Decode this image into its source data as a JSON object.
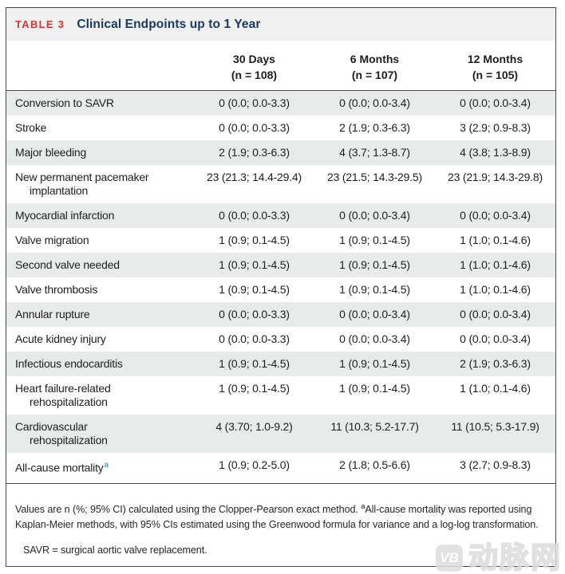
{
  "header": {
    "label": "TABLE 3",
    "title": "Clinical Endpoints up to 1 Year"
  },
  "columns": [
    {
      "title": "30 Days",
      "n": "(n = 108)"
    },
    {
      "title": "6 Months",
      "n": "(n = 107)"
    },
    {
      "title": "12 Months",
      "n": "(n = 105)"
    }
  ],
  "rows": [
    {
      "label": "Conversion to SAVR",
      "shaded": true,
      "values": [
        "0 (0.0; 0.0-3.3)",
        "0 (0.0; 0.0-3.4)",
        "0 (0.0; 0.0-3.4)"
      ]
    },
    {
      "label": "Stroke",
      "shaded": false,
      "values": [
        "0 (0.0; 0.0-3.3)",
        "2 (1.9; 0.3-6.3)",
        "3 (2.9; 0.9-8.3)"
      ]
    },
    {
      "label": "Major bleeding",
      "shaded": true,
      "values": [
        "2 (1.9; 0.3-6.3)",
        "4 (3.7; 1.3-8.7)",
        "4 (3.8; 1.3-8.9)"
      ]
    },
    {
      "label": "New permanent pacemaker",
      "label2": "implantation",
      "shaded": false,
      "values": [
        "23 (21.3; 14.4-29.4)",
        "23 (21.5; 14.3-29.5)",
        "23 (21.9; 14.3-29.8)"
      ]
    },
    {
      "label": "Myocardial infarction",
      "shaded": true,
      "values": [
        "0 (0.0; 0.0-3.3)",
        "0 (0.0; 0.0-3.4)",
        "0 (0.0; 0.0-3.4)"
      ]
    },
    {
      "label": "Valve migration",
      "shaded": false,
      "values": [
        "1 (0.9; 0.1-4.5)",
        "1 (0.9; 0.1-4.5)",
        "1 (1.0; 0.1-4.6)"
      ]
    },
    {
      "label": "Second valve needed",
      "shaded": true,
      "values": [
        "1 (0.9; 0.1-4.5)",
        "1 (0.9; 0.1-4.5)",
        "1 (1.0; 0.1-4.6)"
      ]
    },
    {
      "label": "Valve thrombosis",
      "shaded": false,
      "values": [
        "1 (0.9; 0.1-4.5)",
        "1 (0.9; 0.1-4.5)",
        "1 (1.0; 0.1-4.6)"
      ]
    },
    {
      "label": "Annular rupture",
      "shaded": true,
      "values": [
        "0 (0.0; 0.0-3.3)",
        "0 (0.0; 0.0-3.4)",
        "0 (0.0; 0.0-3.4)"
      ]
    },
    {
      "label": "Acute kidney injury",
      "shaded": false,
      "values": [
        "0 (0.0; 0.0-3.3)",
        "0 (0.0; 0.0-3.4)",
        "0 (0.0; 0.0-3.4)"
      ]
    },
    {
      "label": "Infectious endocarditis",
      "shaded": true,
      "values": [
        "1 (0.9; 0.1-4.5)",
        "1 (0.9; 0.1-4.5)",
        "2 (1.9; 0.3-6.3)"
      ]
    },
    {
      "label": "Heart failure-related",
      "label2": "rehospitalization",
      "shaded": false,
      "values": [
        "1 (0.9; 0.1-4.5)",
        "1 (0.9; 0.1-4.5)",
        "1 (1.0; 0.1-4.6)"
      ]
    },
    {
      "label": "Cardiovascular",
      "label2": "rehospitalization",
      "shaded": true,
      "values": [
        "4 (3.70; 1.0-9.2)",
        "11 (10.3; 5.2-17.7)",
        "11 (10.5; 5.3-17.9)"
      ]
    },
    {
      "label": "All-cause mortality",
      "sup": "a",
      "shaded": false,
      "values": [
        "1 (0.9; 0.2-5.0)",
        "2 (1.8; 0.5-6.6)",
        "3 (2.7; 0.9-8.3)"
      ]
    }
  ],
  "footnotes": {
    "note1_pre": "Values are n (%; 95% CI) calculated using the Clopper-Pearson exact method. ",
    "note1_sup": "a",
    "note1_post": "All-cause mortality was reported using Kaplan-Meier methods, with 95% CIs estimated using the Greenwood formula for variance and a log-log transformation.",
    "note2": "SAVR = surgical aortic valve replacement."
  },
  "watermark": {
    "logo": "VB",
    "text": "动脉网"
  },
  "colors": {
    "table_label_red": "#d2392c",
    "title_navy": "#1a3a60",
    "row_shade": "#e9ebeb",
    "titlebar_gray": "#eff0ef",
    "superscript_blue": "#49a7c6",
    "border_dark": "#474747"
  }
}
